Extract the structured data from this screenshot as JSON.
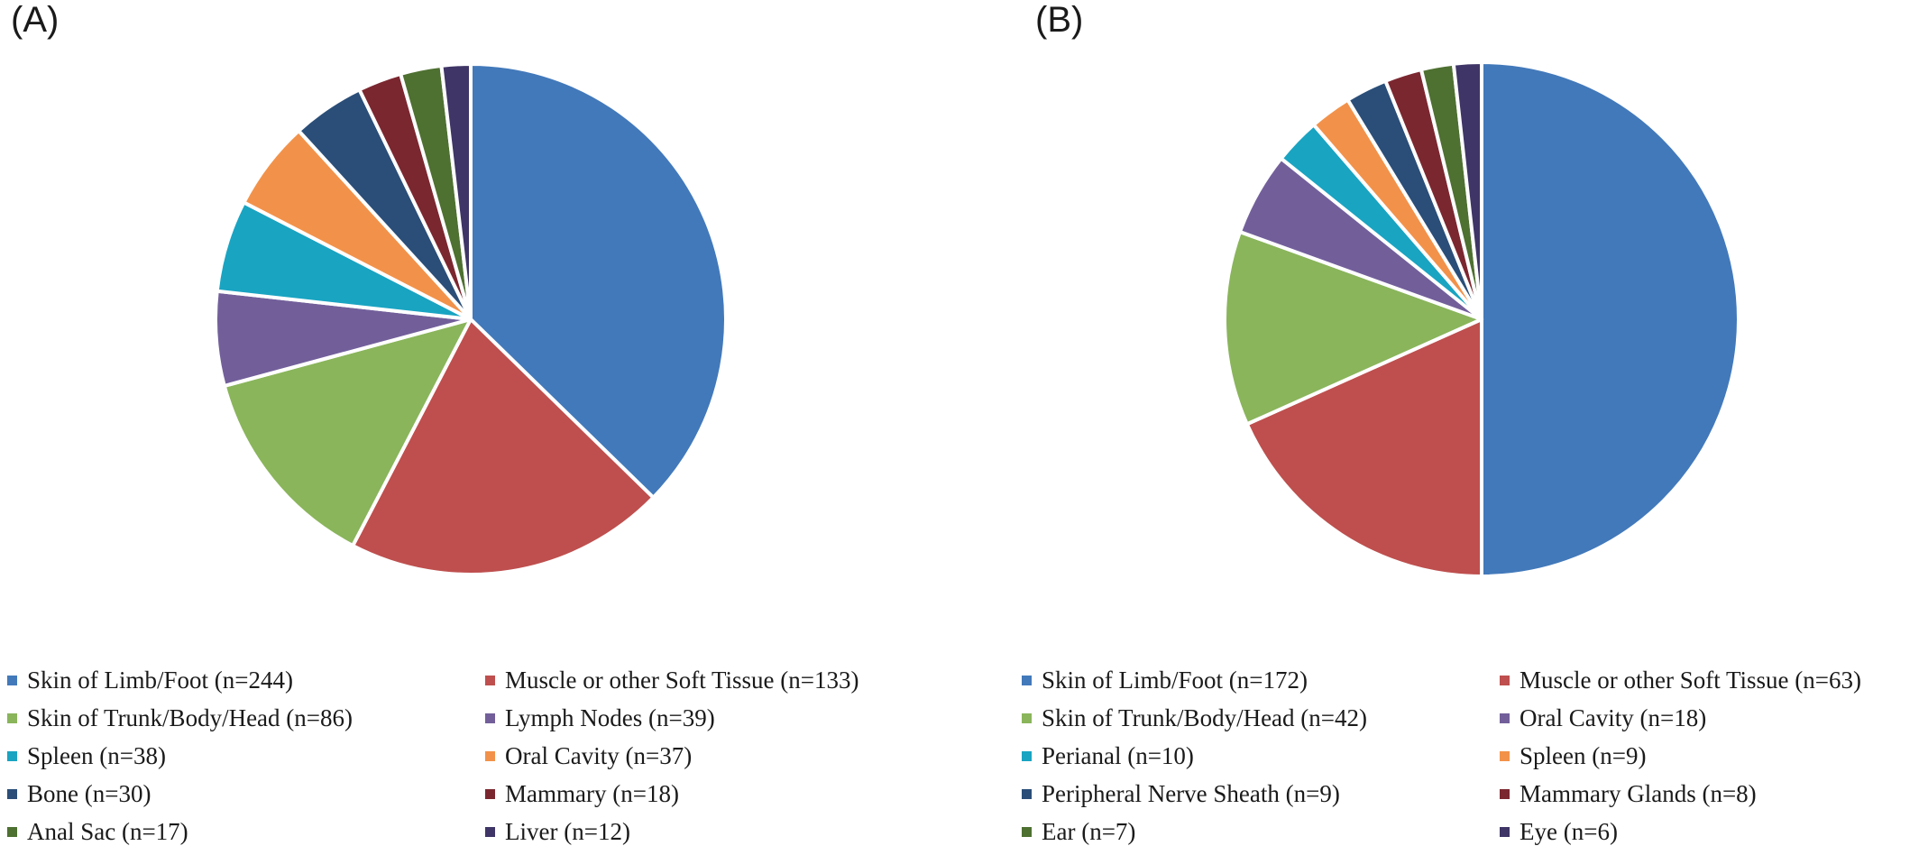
{
  "chart_data": [
    {
      "type": "pie",
      "panel_label": "(A)",
      "legend_placement": "bottom",
      "slices": [
        {
          "label": "Skin of Limb/Foot (n=244)",
          "value": 244,
          "color": "#4279BA"
        },
        {
          "label": "Muscle or other Soft Tissue  (n=133)",
          "value": 133,
          "color": "#BE4F4E"
        },
        {
          "label": "Skin of Trunk/Body/Head (n=86)",
          "value": 86,
          "color": "#8AB55B"
        },
        {
          "label": "Lymph Nodes (n=39)",
          "value": 39,
          "color": "#725F9A"
        },
        {
          "label": "Spleen (n=38)",
          "value": 38,
          "color": "#19A4C2"
        },
        {
          "label": "Oral Cavity (n=37)",
          "value": 37,
          "color": "#F2924A"
        },
        {
          "label": "Bone (n=30)",
          "value": 30,
          "color": "#2A4E78"
        },
        {
          "label": "Mammary (n=18)",
          "value": 18,
          "color": "#7B2730"
        },
        {
          "label": "Anal Sac (n=17)",
          "value": 17,
          "color": "#4E7031"
        },
        {
          "label": "Liver (n=12)",
          "value": 12,
          "color": "#3F3566"
        }
      ]
    },
    {
      "type": "pie",
      "panel_label": "(B)",
      "legend_placement": "bottom",
      "slices": [
        {
          "label": "Skin of Limb/Foot (n=172)",
          "value": 172,
          "color": "#4279BA"
        },
        {
          "label": "Muscle or other Soft Tissue (n=63)",
          "value": 63,
          "color": "#BE4F4E"
        },
        {
          "label": "Skin of Trunk/Body/Head (n=42)",
          "value": 42,
          "color": "#8AB55B"
        },
        {
          "label": "Oral Cavity (n=18)",
          "value": 18,
          "color": "#725F9A"
        },
        {
          "label": "Perianal (n=10)",
          "value": 10,
          "color": "#19A4C2"
        },
        {
          "label": "Spleen (n=9)",
          "value": 9,
          "color": "#F2924A"
        },
        {
          "label": "Peripheral Nerve Sheath (n=9)",
          "value": 9,
          "color": "#2A4E78"
        },
        {
          "label": "Mammary Glands (n=8)",
          "value": 8,
          "color": "#7B2730"
        },
        {
          "label": "Ear (n=7)",
          "value": 7,
          "color": "#4E7031"
        },
        {
          "label": "Eye (n=6)",
          "value": 6,
          "color": "#3F3566"
        }
      ]
    }
  ]
}
